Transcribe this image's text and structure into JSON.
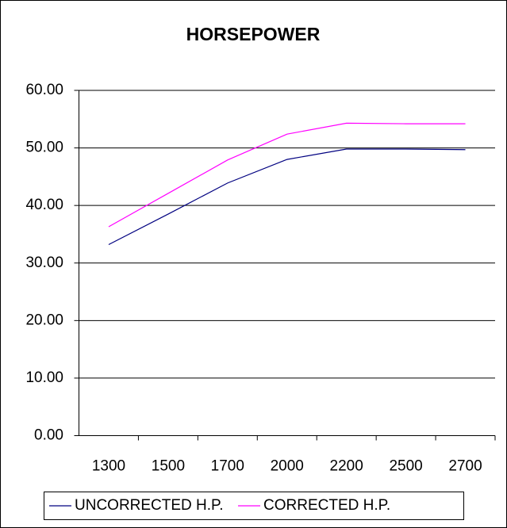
{
  "chart_data": {
    "type": "line",
    "title": "HORSEPOWER",
    "categories": [
      "1300",
      "1500",
      "1700",
      "2000",
      "2200",
      "2500",
      "2700"
    ],
    "series": [
      {
        "name": "UNCORRECTED H.P.",
        "color": "#000080",
        "values": [
          33.2,
          38.5,
          43.9,
          48.0,
          49.8,
          49.8,
          49.7
        ]
      },
      {
        "name": "CORRECTED H.P.",
        "color": "#ff00ff",
        "values": [
          36.3,
          42.1,
          47.9,
          52.4,
          54.3,
          54.2,
          54.2
        ]
      }
    ],
    "ylim": [
      0,
      60
    ],
    "yticks": [
      {
        "value": 0,
        "label": "0.00"
      },
      {
        "value": 10,
        "label": "10.00"
      },
      {
        "value": 20,
        "label": "20.00"
      },
      {
        "value": 30,
        "label": "30.00"
      },
      {
        "value": 40,
        "label": "40.00"
      },
      {
        "value": 50,
        "label": "50.00"
      },
      {
        "value": 60,
        "label": "60.00"
      }
    ],
    "grid": true,
    "legend": "bottom"
  }
}
